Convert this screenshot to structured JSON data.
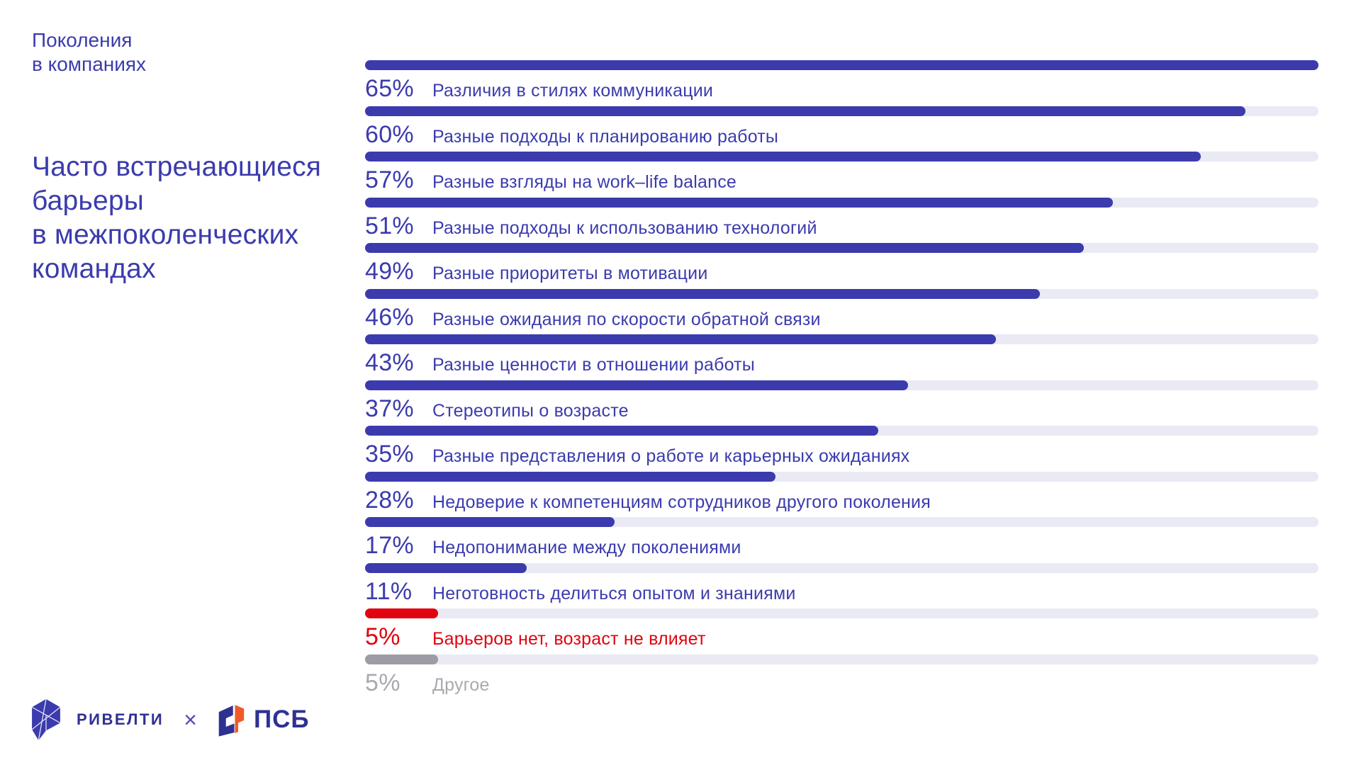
{
  "page": {
    "kicker_lines": [
      "Поколения",
      "в компаниях"
    ],
    "title_lines": [
      "Часто встречающиеся",
      "барьеры",
      "в межпоколенческих",
      "командах"
    ]
  },
  "chart_data": {
    "type": "bar",
    "orientation": "horizontal",
    "title": "Часто встречающиеся барьеры в межпоколенческих командах",
    "unit": "%",
    "scale_max": 65,
    "grid": false,
    "legend": false,
    "categories": [
      "Различия в стилях коммуникации",
      "Разные подходы к планированию работы",
      "Разные взгляды на work–life balance",
      "Разные подходы к использованию технологий",
      "Разные приоритеты в мотивации",
      "Разные ожидания по скорости обратной связи",
      "Разные ценности в отношении работы",
      "Стереотипы о возрасте",
      "Разные представления о работе и карьерных ожиданиях",
      "Недоверие к компетенциям сотрудников другого поколения",
      "Недопонимание между поколениями",
      "Неготовность делиться опытом и знаниями",
      "Барьеров нет, возраст не влияет",
      "Другое"
    ],
    "values": [
      65,
      60,
      57,
      51,
      49,
      46,
      43,
      37,
      35,
      28,
      17,
      11,
      5,
      5
    ],
    "bars": [
      {
        "label": "Различия в стилях коммуникации",
        "value": 65,
        "display": "65%",
        "variant": "primary"
      },
      {
        "label": "Разные подходы к планированию работы",
        "value": 60,
        "display": "60%",
        "variant": "primary"
      },
      {
        "label": "Разные взгляды на work–life balance",
        "value": 57,
        "display": "57%",
        "variant": "primary"
      },
      {
        "label": "Разные подходы к использованию технологий",
        "value": 51,
        "display": "51%",
        "variant": "primary"
      },
      {
        "label": "Разные приоритеты в мотивации",
        "value": 49,
        "display": "49%",
        "variant": "primary"
      },
      {
        "label": "Разные ожидания по скорости обратной связи",
        "value": 46,
        "display": "46%",
        "variant": "primary"
      },
      {
        "label": "Разные ценности в отношении работы",
        "value": 43,
        "display": "43%",
        "variant": "primary"
      },
      {
        "label": "Стереотипы о возрасте",
        "value": 37,
        "display": "37%",
        "variant": "primary"
      },
      {
        "label": "Разные представления о работе и карьерных ожиданиях",
        "value": 35,
        "display": "35%",
        "variant": "primary"
      },
      {
        "label": "Недоверие к компетенциям сотрудников другого поколения",
        "value": 28,
        "display": "28%",
        "variant": "primary"
      },
      {
        "label": "Недопонимание между поколениями",
        "value": 17,
        "display": "17%",
        "variant": "primary"
      },
      {
        "label": "Неготовность делиться опытом и знаниями",
        "value": 11,
        "display": "11%",
        "variant": "primary"
      },
      {
        "label": "Барьеров нет, возраст не влияет",
        "value": 5,
        "display": "5%",
        "variant": "accent"
      },
      {
        "label": "Другое",
        "value": 5,
        "display": "5%",
        "variant": "muted"
      }
    ]
  },
  "footer": {
    "left_brand": "РИВЕЛТИ",
    "separator": "×",
    "right_brand": "ПСБ"
  },
  "colors": {
    "primary": "#3B3BAE",
    "accent": "#E1030F",
    "muted_bar": "#9C9CA4",
    "muted_text": "#A9A9B0",
    "track": "#E9EAF4",
    "logo_blue": "#2E3192",
    "logo_orange": "#F05A28"
  }
}
